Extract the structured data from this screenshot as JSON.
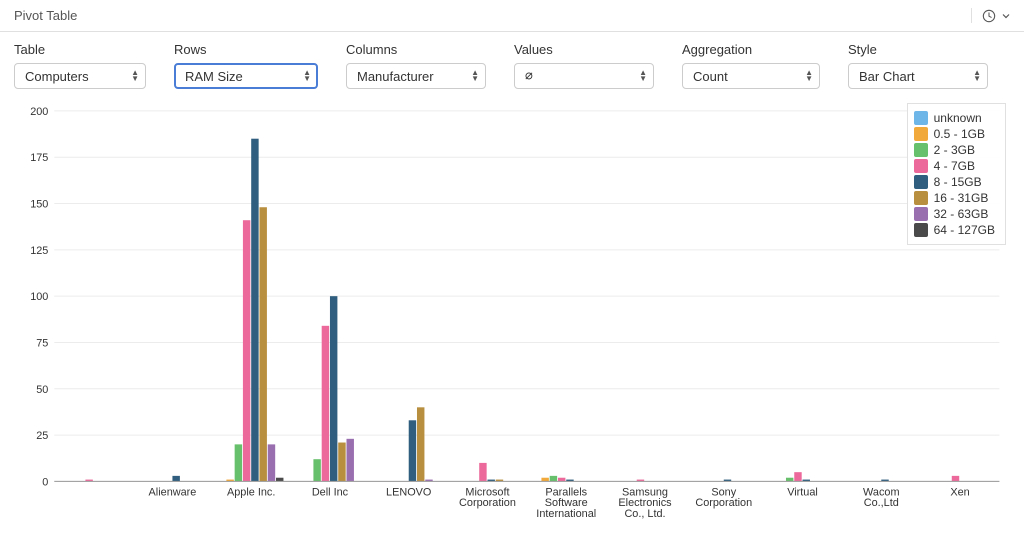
{
  "header": {
    "title": "Pivot Table"
  },
  "controls": {
    "table": {
      "label": "Table",
      "value": "Computers",
      "width": 132
    },
    "rows": {
      "label": "Rows",
      "value": "RAM Size",
      "width": 144,
      "highlighted": true
    },
    "columns": {
      "label": "Columns",
      "value": "Manufacturer",
      "width": 140
    },
    "values": {
      "label": "Values",
      "value": "∅",
      "width": 140
    },
    "aggregation": {
      "label": "Aggregation",
      "value": "Count",
      "width": 138
    },
    "style": {
      "label": "Style",
      "value": "Bar Chart",
      "width": 140
    }
  },
  "chart": {
    "type": "bar",
    "ylim": [
      0,
      200
    ],
    "ytick_step": 25,
    "background_color": "#ffffff",
    "grid_color": "#e8e8e8",
    "axis_fontsize": 11,
    "series": [
      {
        "key": "unknown",
        "label": "unknown",
        "color": "#6fb6e8"
      },
      {
        "key": "0.5-1GB",
        "label": "0.5 - 1GB",
        "color": "#f2a93b"
      },
      {
        "key": "2-3GB",
        "label": "2 - 3GB",
        "color": "#67c06b"
      },
      {
        "key": "4-7GB",
        "label": "4 - 7GB",
        "color": "#ec6a9b"
      },
      {
        "key": "8-15GB",
        "label": "8 - 15GB",
        "color": "#2f5e7e"
      },
      {
        "key": "16-31GB",
        "label": "16 - 31GB",
        "color": "#b88f3e"
      },
      {
        "key": "32-63GB",
        "label": "32 - 63GB",
        "color": "#9a6fb0"
      },
      {
        "key": "64-127GB",
        "label": "64 - 127GB",
        "color": "#4a4a4a"
      }
    ],
    "categories": [
      {
        "label": "",
        "values": {
          "4-7GB": 1
        }
      },
      {
        "label": "Alienware",
        "values": {
          "8-15GB": 3
        }
      },
      {
        "label": "Apple Inc.",
        "values": {
          "0.5-1GB": 1,
          "2-3GB": 20,
          "4-7GB": 141,
          "8-15GB": 185,
          "16-31GB": 148,
          "32-63GB": 20,
          "64-127GB": 2
        }
      },
      {
        "label": "Dell Inc",
        "values": {
          "2-3GB": 12,
          "4-7GB": 84,
          "8-15GB": 100,
          "16-31GB": 21,
          "32-63GB": 23
        }
      },
      {
        "label": "LENOVO",
        "values": {
          "8-15GB": 33,
          "16-31GB": 40,
          "32-63GB": 1
        }
      },
      {
        "label": "Microsoft Corporation",
        "values": {
          "4-7GB": 10,
          "8-15GB": 1,
          "16-31GB": 1
        }
      },
      {
        "label": "Parallels Software International",
        "values": {
          "0.5-1GB": 2,
          "2-3GB": 3,
          "4-7GB": 2,
          "8-15GB": 1
        }
      },
      {
        "label": "Samsung Electronics Co., Ltd.",
        "values": {
          "4-7GB": 1
        }
      },
      {
        "label": "Sony Corporation",
        "values": {
          "8-15GB": 1
        }
      },
      {
        "label": "Virtual",
        "values": {
          "2-3GB": 2,
          "4-7GB": 5,
          "8-15GB": 1
        }
      },
      {
        "label": "Wacom Co.,Ltd",
        "values": {
          "8-15GB": 1
        }
      },
      {
        "label": "Xen",
        "values": {
          "4-7GB": 3
        }
      }
    ]
  }
}
